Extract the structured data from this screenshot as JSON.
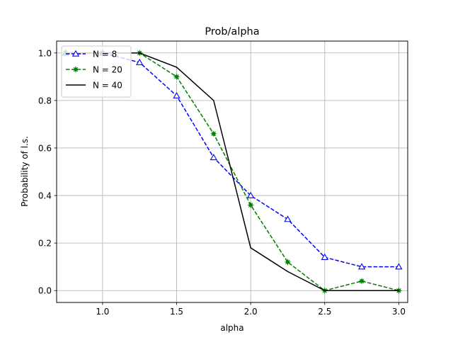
{
  "chart_data": {
    "type": "line",
    "title": "Prob/alpha",
    "xlabel": "alpha",
    "ylabel": "Probability of l.s.",
    "xlim": [
      0.69,
      3.06
    ],
    "ylim": [
      -0.05,
      1.05
    ],
    "xticks": [
      1.0,
      1.5,
      2.0,
      2.5,
      3.0
    ],
    "xtick_labels": [
      "1.0",
      "1.5",
      "2.0",
      "2.5",
      "3.0"
    ],
    "yticks": [
      0.0,
      0.2,
      0.4,
      0.6,
      0.8,
      1.0
    ],
    "ytick_labels": [
      "0.0",
      "0.2",
      "0.4",
      "0.6",
      "0.8",
      "1.0"
    ],
    "grid": true,
    "legend_position": "top-left",
    "series": [
      {
        "name": "N = 8",
        "color": "#0000ff",
        "line_style": "dashed",
        "marker": "triangle-open",
        "x": [
          0.75,
          1.0,
          1.25,
          1.5,
          1.75,
          2.0,
          2.25,
          2.5,
          2.75,
          3.0
        ],
        "y": [
          1.0,
          1.0,
          0.96,
          0.82,
          0.56,
          0.4,
          0.3,
          0.14,
          0.1,
          0.1
        ]
      },
      {
        "name": "N = 20",
        "color": "#008000",
        "line_style": "dashed",
        "marker": "star",
        "x": [
          0.75,
          1.0,
          1.25,
          1.5,
          1.75,
          2.0,
          2.25,
          2.5,
          2.75,
          3.0
        ],
        "y": [
          1.0,
          1.0,
          1.0,
          0.9,
          0.66,
          0.36,
          0.12,
          0.0,
          0.04,
          0.0
        ]
      },
      {
        "name": "N = 40",
        "color": "#000000",
        "line_style": "solid",
        "marker": "none",
        "x": [
          0.75,
          1.0,
          1.25,
          1.5,
          1.75,
          2.0,
          2.25,
          2.5,
          2.75,
          3.0
        ],
        "y": [
          1.0,
          1.0,
          1.0,
          0.94,
          0.8,
          0.18,
          0.08,
          0.0,
          0.0,
          0.0
        ]
      }
    ]
  }
}
